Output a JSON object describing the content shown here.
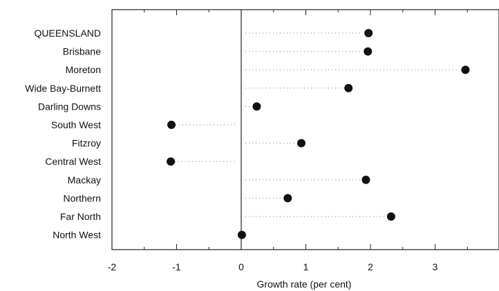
{
  "chart_data": {
    "type": "scatter",
    "title": "",
    "xlabel": "Growth rate (per cent)",
    "ylabel": "",
    "xlim": [
      -2,
      4
    ],
    "xticks": [
      -2,
      -1,
      0,
      1,
      2,
      3,
      4
    ],
    "xtick_labels": [
      "-2",
      "-1",
      "0",
      "1",
      "2",
      "3",
      ""
    ],
    "grid": false,
    "categories": [
      "QUEENSLAND",
      "Brisbane",
      "Moreton",
      "Wide Bay-Burnett",
      "Darling Downs",
      "South West",
      "Fitzroy",
      "Central West",
      "Mackay",
      "Northern",
      "Far North",
      "North West"
    ],
    "values": [
      1.97,
      1.96,
      3.47,
      1.66,
      0.24,
      -1.08,
      0.93,
      -1.09,
      1.93,
      0.72,
      2.32,
      0.01
    ]
  }
}
